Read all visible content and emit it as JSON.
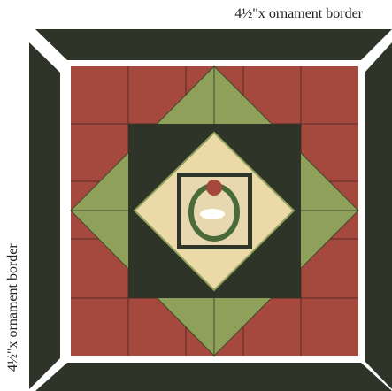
{
  "labels": {
    "top": "4½\"x ornament border",
    "left": "4½\"x ornament border"
  }
}
